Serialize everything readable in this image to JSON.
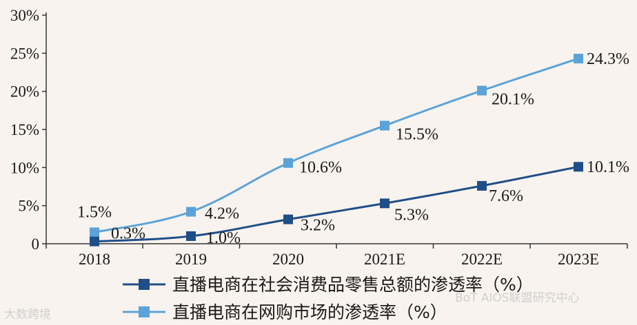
{
  "chart_data": {
    "type": "line",
    "categories": [
      "2018",
      "2019",
      "2020",
      "2021E",
      "2022E",
      "2023E"
    ],
    "series": [
      {
        "name": "直播电商在社会消费品零售总额的渗透率（%）",
        "color": "#1f4e89",
        "values": [
          0.3,
          1.0,
          3.2,
          5.3,
          7.6,
          10.1
        ],
        "labels": [
          "0.3%",
          "1.0%",
          "3.2%",
          "5.3%",
          "7.6%",
          "10.1%"
        ]
      },
      {
        "name": "直播电商在网购市场的渗透率（%）",
        "color": "#5ba3d9",
        "values": [
          1.5,
          4.2,
          10.6,
          15.5,
          20.1,
          24.3
        ],
        "labels": [
          "1.5%",
          "4.2%",
          "10.6%",
          "15.5%",
          "20.1%",
          "24.3%"
        ]
      }
    ],
    "ylim": [
      0,
      30
    ],
    "yticks": [
      0,
      5,
      10,
      15,
      20,
      25,
      30
    ],
    "ytick_labels": [
      "0",
      "5%",
      "10%",
      "15%",
      "20%",
      "25%",
      "30%"
    ],
    "legend_position": "bottom-left"
  },
  "watermarks": {
    "left": "大数跨境",
    "right": "BoT AIOS联盟研究中心"
  }
}
